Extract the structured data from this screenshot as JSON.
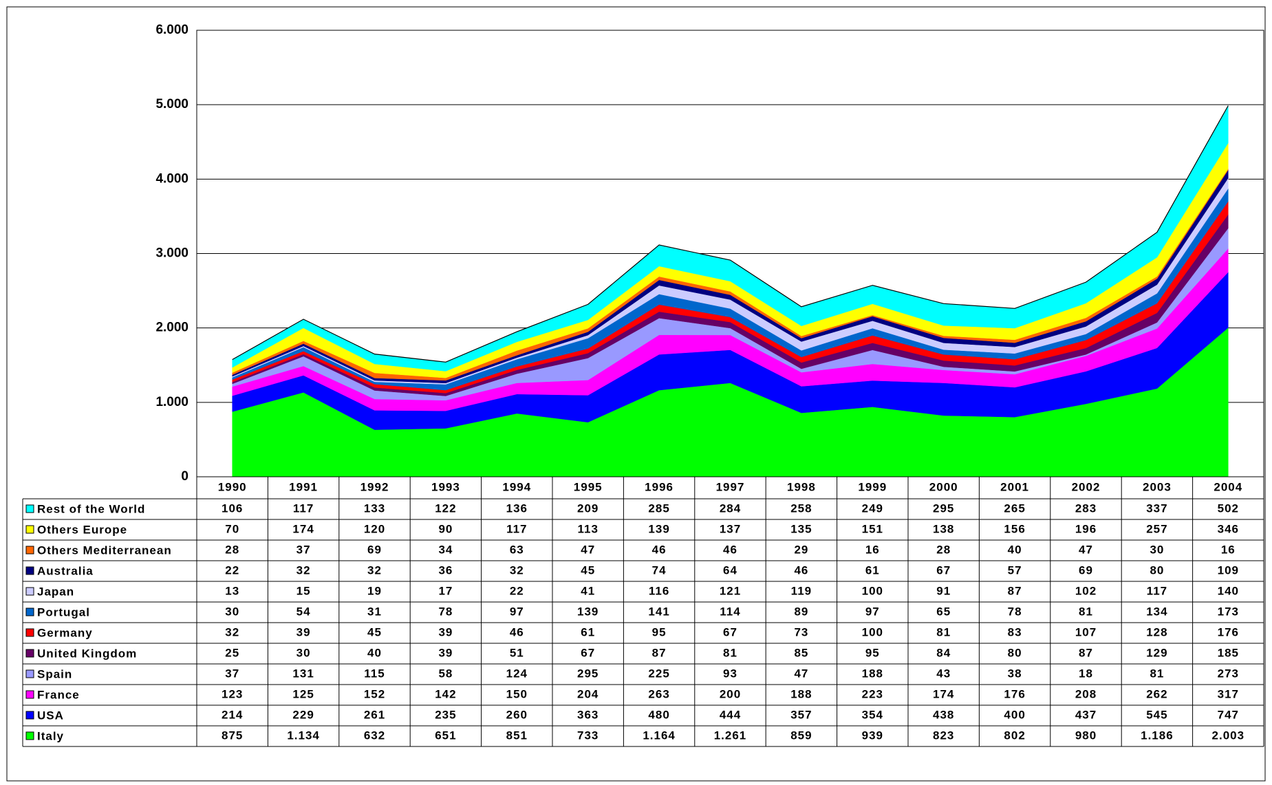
{
  "chart_data": {
    "type": "stacked_area",
    "categories": [
      "1990",
      "1991",
      "1992",
      "1993",
      "1994",
      "1995",
      "1996",
      "1997",
      "1998",
      "1999",
      "2000",
      "2001",
      "2002",
      "2003",
      "2004"
    ],
    "ylim": [
      0,
      6000
    ],
    "yticks": [
      0,
      {
        "value": 1000,
        "label": "1.000"
      },
      {
        "value": 2000,
        "label": "2.000"
      },
      {
        "value": 3000,
        "label": "3.000"
      },
      {
        "value": 4000,
        "label": "4.000"
      },
      {
        "value": 5000,
        "label": "5.000"
      },
      {
        "value": 6000,
        "label": "6.000"
      }
    ],
    "grid": true,
    "series": [
      {
        "name": "Italy",
        "color": "#00ff00",
        "values": [
          875,
          1134,
          632,
          651,
          851,
          733,
          1164,
          1261,
          859,
          939,
          823,
          802,
          980,
          1186,
          2003
        ],
        "value_labels": [
          "875",
          "1.134",
          "632",
          "651",
          "851",
          "733",
          "1.164",
          "1.261",
          "859",
          "939",
          "823",
          "802",
          "980",
          "1.186",
          "2.003"
        ]
      },
      {
        "name": "USA",
        "color": "#0000ff",
        "values": [
          214,
          229,
          261,
          235,
          260,
          363,
          480,
          444,
          357,
          354,
          438,
          400,
          437,
          545,
          747
        ]
      },
      {
        "name": "France",
        "color": "#ff00ff",
        "values": [
          123,
          125,
          152,
          142,
          150,
          204,
          263,
          200,
          188,
          223,
          174,
          176,
          208,
          262,
          317
        ]
      },
      {
        "name": "Spain",
        "color": "#9999ff",
        "values": [
          37,
          131,
          115,
          58,
          124,
          295,
          225,
          93,
          47,
          188,
          43,
          38,
          18,
          81,
          273
        ]
      },
      {
        "name": "United Kingdom",
        "color": "#660066",
        "values": [
          25,
          30,
          40,
          39,
          51,
          67,
          87,
          81,
          85,
          95,
          84,
          80,
          87,
          129,
          185
        ]
      },
      {
        "name": "Germany",
        "color": "#ff0000",
        "values": [
          32,
          39,
          45,
          39,
          46,
          61,
          95,
          67,
          73,
          100,
          81,
          83,
          107,
          128,
          176
        ]
      },
      {
        "name": "Portugal",
        "color": "#0066cc",
        "values": [
          30,
          54,
          31,
          78,
          97,
          139,
          141,
          114,
          89,
          97,
          65,
          78,
          81,
          134,
          173
        ]
      },
      {
        "name": "Japan",
        "color": "#ccccff",
        "values": [
          13,
          15,
          19,
          17,
          22,
          41,
          116,
          121,
          119,
          100,
          91,
          87,
          102,
          117,
          140
        ]
      },
      {
        "name": "Australia",
        "color": "#000080",
        "values": [
          22,
          32,
          32,
          36,
          32,
          45,
          74,
          64,
          46,
          61,
          67,
          57,
          69,
          80,
          109
        ]
      },
      {
        "name": "Others Mediterranean",
        "color": "#ff6600",
        "values": [
          28,
          37,
          69,
          34,
          63,
          47,
          46,
          46,
          29,
          16,
          28,
          40,
          47,
          30,
          16
        ]
      },
      {
        "name": "Others Europe",
        "color": "#ffff00",
        "values": [
          70,
          174,
          120,
          90,
          117,
          113,
          139,
          137,
          135,
          151,
          138,
          156,
          196,
          257,
          346
        ]
      },
      {
        "name": "Rest of the World",
        "color": "#00ffff",
        "values": [
          106,
          117,
          133,
          122,
          136,
          209,
          285,
          284,
          258,
          249,
          295,
          265,
          283,
          337,
          502
        ]
      }
    ]
  }
}
